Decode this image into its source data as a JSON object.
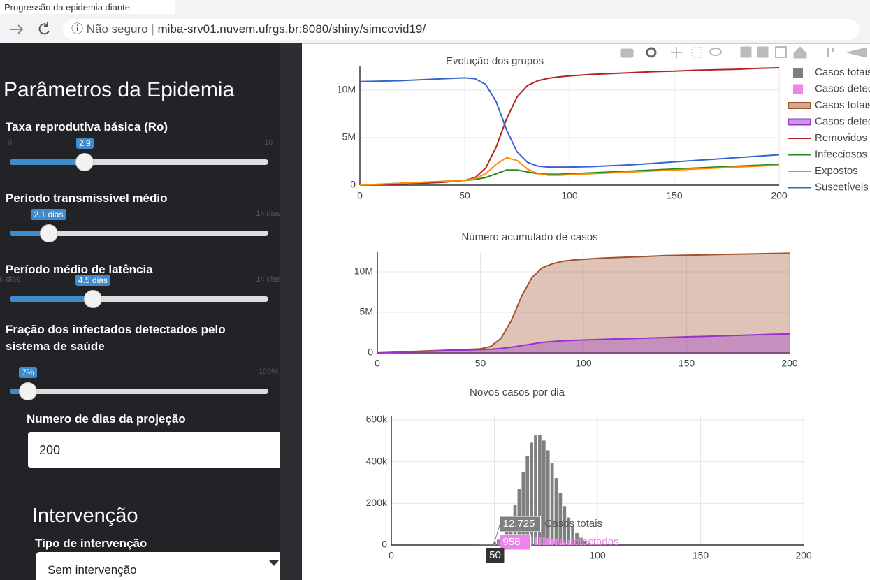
{
  "browser": {
    "tab_title": "Progressão da epidemia diante",
    "security": "Não seguro",
    "url": "miba-srv01.nuvem.ufrgs.br:8080/shiny/simcovid19/"
  },
  "sidebar": {
    "title": "Parâmetros da Epidemia",
    "sliders": [
      {
        "label": "Taxa reprodutiva básica (Ro)",
        "range": [
          0,
          10
        ],
        "ticks": [
          0,
          10
        ],
        "value": 2.9
      },
      {
        "label": "Período transmissível médio",
        "range": [
          0,
          14
        ],
        "ticks": [
          {
            "value": 14,
            "label": "14 dias"
          }
        ],
        "value": {
          "value": 2.1,
          "label": "2.1 dias"
        }
      },
      {
        "label": "Período médio de latência",
        "range": [
          0,
          14
        ],
        "ticks": [
          {
            "value": 0,
            "label": "0 dias"
          },
          {
            "value": 14,
            "label": "14 dias"
          }
        ],
        "value": {
          "value": 4.5,
          "label": "4.5 dias"
        }
      },
      {
        "label": "Fração dos infectados detectados pelo sistema de saúde",
        "range": [
          0,
          100
        ],
        "ticks": [
          {
            "value": 100,
            "label": "100%"
          }
        ],
        "value": {
          "value": 7,
          "label": "7%"
        }
      }
    ],
    "days_input": {
      "label": "Numero de dias da projeção",
      "value": 200
    },
    "intervention": {
      "title": "Intervenção",
      "label": "Tipo de intervenção",
      "value": "Sem intervenção"
    }
  },
  "chart_data": [
    {
      "type": "line",
      "title": "Evolução dos grupos",
      "x": [
        0,
        10,
        20,
        30,
        40,
        50,
        55,
        60,
        65,
        70,
        75,
        80,
        85,
        90,
        95,
        100,
        110,
        120,
        130,
        140,
        150,
        160,
        170,
        180,
        190,
        200
      ],
      "series": [
        {
          "name": "Removidos",
          "color": "#b22222",
          "values": [
            0,
            50000,
            100000,
            200000,
            300000,
            500000,
            800000,
            1800000,
            4000000,
            7000000,
            9300000,
            10500000,
            11000000,
            11250000,
            11400000,
            11500000,
            11650000,
            11750000,
            11850000,
            11950000,
            12000000,
            12100000,
            12150000,
            12200000,
            12300000,
            12350000
          ]
        },
        {
          "name": "Infecciosos",
          "color": "#228b22",
          "values": [
            0,
            100000,
            200000,
            300000,
            400000,
            500000,
            600000,
            800000,
            1200000,
            1600000,
            1600000,
            1400000,
            1200000,
            1150000,
            1150000,
            1200000,
            1300000,
            1400000,
            1500000,
            1600000,
            1700000,
            1800000,
            1900000,
            2000000,
            2100000,
            2200000
          ]
        },
        {
          "name": "Expostos",
          "color": "#ff8c00",
          "values": [
            0,
            100000,
            200000,
            300000,
            400000,
            500000,
            700000,
            1200000,
            2200000,
            2900000,
            2600000,
            1700000,
            1200000,
            1050000,
            1050000,
            1100000,
            1200000,
            1300000,
            1400000,
            1500000,
            1600000,
            1700000,
            1800000,
            1900000,
            2000000,
            2100000
          ]
        },
        {
          "name": "Suscetíveis",
          "color": "#3366cc",
          "values": [
            10900000,
            10950000,
            11000000,
            11100000,
            11200000,
            11300000,
            11200000,
            10600000,
            8800000,
            5800000,
            3500000,
            2400000,
            2000000,
            1900000,
            1900000,
            1900000,
            1950000,
            2050000,
            2150000,
            2300000,
            2450000,
            2600000,
            2750000,
            2900000,
            3050000,
            3200000
          ]
        }
      ],
      "xlim": [
        0,
        200
      ],
      "xticks": [
        0,
        50,
        100,
        150,
        200
      ],
      "ylim": [
        0,
        12500000
      ],
      "yticks": [
        0,
        {
          "value": 5000000,
          "label": "5M"
        },
        {
          "value": 10000000,
          "label": "10M"
        }
      ],
      "grid": true
    },
    {
      "type": "area",
      "title": "Número acumulado de casos",
      "x": [
        0,
        10,
        20,
        30,
        40,
        50,
        55,
        60,
        65,
        70,
        75,
        80,
        85,
        90,
        95,
        100,
        110,
        120,
        130,
        140,
        150,
        160,
        170,
        180,
        190,
        200
      ],
      "series": [
        {
          "name": "Casos totais",
          "color": "#a0522d",
          "values": [
            0,
            100000,
            200000,
            300000,
            400000,
            500000,
            800000,
            1800000,
            4000000,
            7000000,
            9300000,
            10500000,
            11000000,
            11300000,
            11450000,
            11550000,
            11700000,
            11800000,
            11900000,
            12000000,
            12050000,
            12100000,
            12150000,
            12200000,
            12250000,
            12300000
          ]
        },
        {
          "name": "Casos detectados",
          "color": "#9932cc",
          "values": [
            0,
            80000,
            160000,
            240000,
            320000,
            400000,
            450000,
            550000,
            700000,
            900000,
            1100000,
            1300000,
            1400000,
            1500000,
            1550000,
            1600000,
            1680000,
            1750000,
            1820000,
            1900000,
            1980000,
            2050000,
            2120000,
            2200000,
            2280000,
            2350000
          ]
        }
      ],
      "xlim": [
        0,
        200
      ],
      "xticks": [
        0,
        50,
        100,
        150,
        200
      ],
      "ylim": [
        0,
        12500000
      ],
      "yticks": [
        0,
        {
          "value": 5000000,
          "label": "5M"
        },
        {
          "value": 10000000,
          "label": "10M"
        }
      ],
      "grid": true
    },
    {
      "type": "bar",
      "title": "Novos casos por dia",
      "x": [
        40,
        42,
        44,
        46,
        48,
        50,
        52,
        54,
        56,
        58,
        60,
        62,
        64,
        66,
        68,
        70,
        72,
        74,
        76,
        78,
        80,
        82,
        84,
        86,
        88,
        90,
        92,
        94,
        96,
        98,
        100
      ],
      "series": [
        {
          "name": "Casos totais",
          "color": "#7f7f7f",
          "values": [
            160,
            440,
            1130,
            2730,
            6130,
            12725,
            25300,
            46300,
            79400,
            127500,
            191100,
            267700,
            350600,
            429300,
            491300,
            525500,
            526700,
            501400,
            454300,
            391800,
            321400,
            251100,
            186700,
            132100,
            89000,
            57100,
            34800,
            20200,
            11200,
            5900,
            2950
          ]
        },
        {
          "name": "Casos detectados",
          "color": "#ee82ee",
          "values": [
            12,
            33,
            85,
            206,
            462,
            958,
            1905,
            3486,
            5979,
            9601,
            14390,
            20158,
            26400,
            32326,
            36995,
            39570,
            39660,
            37755,
            34209,
            29503,
            24201,
            18908,
            14059,
            9947,
            6702,
            4300,
            2620,
            1521,
            843,
            444,
            222
          ]
        }
      ],
      "hover": {
        "x": 50,
        "values": [
          12725,
          958
        ],
        "value_labels": [
          "12,725",
          "958"
        ]
      },
      "xlim": [
        0,
        200
      ],
      "xticks": [
        0,
        50,
        100,
        150,
        200
      ],
      "ylim": [
        0,
        620000
      ],
      "yticks": [
        0,
        {
          "value": 200000,
          "label": "200k"
        },
        {
          "value": 400000,
          "label": "400k"
        },
        {
          "value": 600000,
          "label": "600k"
        }
      ],
      "grid": true
    }
  ]
}
